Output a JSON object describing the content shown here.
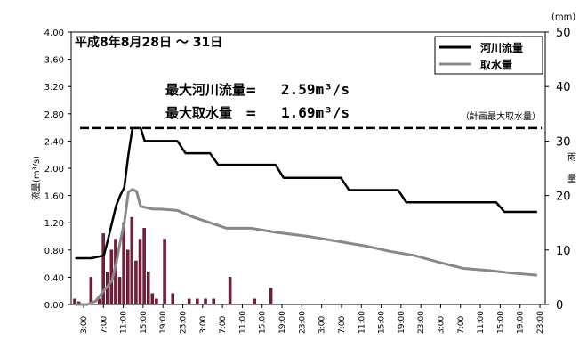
{
  "chart_data": {
    "type": "line",
    "title": "平成8年8月28日 ～ 31日",
    "ylabel": "流量(m³/s)",
    "y2label": "雨量",
    "y2unit": "(mm)",
    "ylim": [
      0,
      4.0
    ],
    "y2lim": [
      0,
      50
    ],
    "yticks": [
      "0.00",
      "0.40",
      "0.80",
      "1.20",
      "1.60",
      "2.00",
      "2.40",
      "2.80",
      "3.20",
      "3.60",
      "4.00"
    ],
    "y2ticks": [
      "0",
      "10",
      "20",
      "30",
      "40",
      "50"
    ],
    "xticks": [
      "3:00",
      "7:00",
      "11:00",
      "15:00",
      "19:00",
      "23:00",
      "3:00",
      "7:00",
      "11:00",
      "15:00",
      "19:00",
      "23:00",
      "3:00",
      "7:00",
      "11:00",
      "15:00",
      "19:00",
      "23:00",
      "3:00",
      "7:00",
      "11:00",
      "15:00",
      "19:00",
      "23:00"
    ],
    "grid": false,
    "legend_position": "top-right",
    "annotations": {
      "max_river_label": "最大河川流量=",
      "max_river_value": "2.59m³/s",
      "max_intake_label": "最大取水量　=",
      "max_intake_value": "1.69m³/s",
      "planned_max_label": "（計画最大取水量）",
      "planned_max_value": 2.59
    },
    "series": [
      {
        "name": "河川流量",
        "color": "#000000",
        "axis": "left",
        "x": [
          1,
          5,
          8,
          9,
          10,
          11,
          12,
          13,
          14,
          15,
          16,
          17,
          18,
          20,
          26,
          28,
          34,
          36,
          50,
          52,
          66,
          68,
          80,
          82,
          92,
          94,
          104,
          106,
          112,
          114
        ],
        "values": [
          0.68,
          0.68,
          0.72,
          0.95,
          1.2,
          1.45,
          1.6,
          1.72,
          2.2,
          2.59,
          2.59,
          2.59,
          2.4,
          2.4,
          2.4,
          2.22,
          2.22,
          2.05,
          2.05,
          1.86,
          1.86,
          1.68,
          1.68,
          1.5,
          1.5,
          1.5,
          1.5,
          1.36,
          1.36,
          1.36
        ]
      },
      {
        "name": "取水量",
        "color": "#888888",
        "axis": "left",
        "x": [
          1,
          4,
          6,
          8,
          10,
          11,
          12,
          13,
          14,
          15,
          16,
          17,
          20,
          22,
          26,
          30,
          34,
          38,
          44,
          50,
          58,
          66,
          72,
          78,
          84,
          90,
          96,
          102,
          108,
          114
        ],
        "values": [
          0.0,
          0.0,
          0.05,
          0.2,
          0.35,
          0.6,
          0.92,
          1.2,
          1.65,
          1.69,
          1.66,
          1.44,
          1.4,
          1.4,
          1.38,
          1.28,
          1.2,
          1.12,
          1.12,
          1.06,
          1.0,
          0.92,
          0.86,
          0.78,
          0.72,
          0.62,
          0.53,
          0.5,
          0.46,
          0.43
        ]
      },
      {
        "name": "雨量",
        "type": "bar",
        "color": "#7a1e3c",
        "axis": "right",
        "x": [
          0,
          1,
          4,
          6,
          7,
          8,
          9,
          10,
          11,
          12,
          13,
          14,
          15,
          16,
          17,
          18,
          19,
          20,
          22,
          24,
          28,
          30,
          32,
          34,
          38,
          44,
          48
        ],
        "values": [
          1,
          0.5,
          5,
          1,
          13,
          6,
          10,
          12,
          5,
          15,
          10,
          16,
          8,
          12,
          14,
          6,
          2,
          1,
          12,
          2,
          1,
          1,
          1,
          1,
          5,
          1,
          3
        ]
      }
    ],
    "x_domain": [
      0,
      116
    ]
  }
}
